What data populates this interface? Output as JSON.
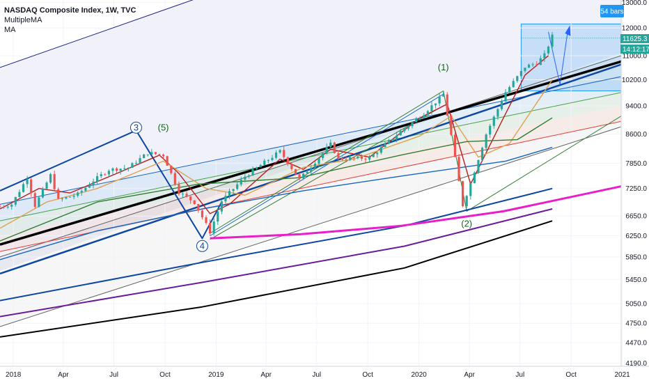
{
  "legend": {
    "title": "NASDAQ Composite Index, 1W, TVC",
    "indicator1": "MultipleMA",
    "indicator2": "MA"
  },
  "colors": {
    "up": "#26a69a",
    "down": "#ef5350",
    "text": "#131722",
    "accent": "#2196f3",
    "magenta": "#e91ec9",
    "black": "#000000",
    "navy": "#0d47a1",
    "purple": "#4a148c"
  },
  "tags": {
    "bars": "54 bars",
    "price": "11625.3",
    "countdown": "14:12:17"
  },
  "wave_labels": [
    {
      "text": "3",
      "circled": true,
      "date": "2018-08-10",
      "price": 8700
    },
    {
      "text": "(5)",
      "circled": false,
      "date": "2018-09-28",
      "price": 8700
    },
    {
      "text": "4",
      "circled": true,
      "date": "2018-12-07",
      "price": 6000
    },
    {
      "text": "(1)",
      "circled": false,
      "date": "2020-02-14",
      "price": 10500
    },
    {
      "text": "(2)",
      "circled": false,
      "date": "2020-03-27",
      "price": 6430
    }
  ],
  "chart_data": {
    "type": "line",
    "title": "NASDAQ Composite Index, 1W, TVC",
    "x_range": [
      "2017-12-08",
      "2020-12-30"
    ],
    "y_scale": "log",
    "ylim": [
      4150,
      13100
    ],
    "y_ticks": [
      13000,
      12000,
      11000,
      10200,
      9400,
      8600,
      7850,
      7250,
      6650,
      6250,
      5850,
      5450,
      5050,
      4750,
      4470,
      4190
    ],
    "x_ticks": [
      {
        "label": "2018",
        "date": "2018-01-01"
      },
      {
        "label": "Apr",
        "date": "2018-04-01"
      },
      {
        "label": "Jul",
        "date": "2018-07-01"
      },
      {
        "label": "Oct",
        "date": "2018-10-01"
      },
      {
        "label": "2019",
        "date": "2019-01-01"
      },
      {
        "label": "Apr",
        "date": "2019-04-01"
      },
      {
        "label": "Jul",
        "date": "2019-07-01"
      },
      {
        "label": "Oct",
        "date": "2019-10-01"
      },
      {
        "label": "2020",
        "date": "2020-01-01"
      },
      {
        "label": "Apr",
        "date": "2020-04-01"
      },
      {
        "label": "Jul",
        "date": "2020-07-01"
      },
      {
        "label": "Oct",
        "date": "2020-10-01"
      },
      {
        "label": "2021",
        "date": "2021-01-01"
      }
    ],
    "close_path": [
      [
        "2017-12-08",
        6850
      ],
      [
        "2017-12-29",
        6900
      ],
      [
        "2018-01-26",
        7500
      ],
      [
        "2018-02-09",
        6870
      ],
      [
        "2018-03-09",
        7560
      ],
      [
        "2018-03-23",
        6990
      ],
      [
        "2018-04-27",
        7120
      ],
      [
        "2018-05-25",
        7430
      ],
      [
        "2018-06-22",
        7690
      ],
      [
        "2018-07-27",
        7740
      ],
      [
        "2018-08-31",
        8110
      ],
      [
        "2018-09-28",
        8050
      ],
      [
        "2018-10-26",
        7170
      ],
      [
        "2018-11-23",
        6940
      ],
      [
        "2018-12-21",
        6330
      ],
      [
        "2019-01-11",
        6970
      ],
      [
        "2019-02-22",
        7530
      ],
      [
        "2019-04-26",
        8150
      ],
      [
        "2019-05-31",
        7460
      ],
      [
        "2019-07-26",
        8330
      ],
      [
        "2019-08-09",
        7960
      ],
      [
        "2019-10-04",
        7980
      ],
      [
        "2019-11-29",
        8670
      ],
      [
        "2020-01-10",
        9180
      ],
      [
        "2020-02-14",
        9730
      ],
      [
        "2020-02-28",
        8570
      ],
      [
        "2020-03-20",
        6880
      ],
      [
        "2020-04-03",
        7370
      ],
      [
        "2020-05-01",
        8600
      ],
      [
        "2020-06-05",
        9810
      ],
      [
        "2020-07-10",
        10620
      ],
      [
        "2020-07-31",
        10750
      ],
      [
        "2020-08-14",
        11020
      ],
      [
        "2020-08-28",
        11695
      ]
    ],
    "series": [
      {
        "color": "#b71c1c",
        "values": [
          [
            "2017-12-08",
            6800
          ],
          [
            "2018-02-16",
            7250
          ],
          [
            "2018-04-13",
            7150
          ],
          [
            "2018-07-06",
            7600
          ],
          [
            "2018-09-21",
            8050
          ],
          [
            "2018-10-26",
            7600
          ],
          [
            "2018-12-21",
            6700
          ],
          [
            "2019-01-25",
            6900
          ],
          [
            "2019-04-26",
            7950
          ],
          [
            "2019-06-07",
            7700
          ],
          [
            "2019-07-26",
            8200
          ],
          [
            "2019-10-04",
            8000
          ],
          [
            "2020-01-03",
            9050
          ],
          [
            "2020-02-21",
            9450
          ],
          [
            "2020-04-03",
            7350
          ],
          [
            "2020-05-29",
            8950
          ],
          [
            "2020-07-10",
            10350
          ],
          [
            "2020-08-21",
            11000
          ]
        ]
      },
      {
        "color": "#e0a050",
        "values": [
          [
            "2017-12-08",
            6400
          ],
          [
            "2018-03-02",
            6950
          ],
          [
            "2018-06-01",
            7250
          ],
          [
            "2018-09-28",
            7900
          ],
          [
            "2018-12-14",
            7250
          ],
          [
            "2019-02-22",
            7100
          ],
          [
            "2019-06-07",
            7750
          ],
          [
            "2019-09-06",
            7950
          ],
          [
            "2020-01-03",
            8550
          ],
          [
            "2020-02-28",
            9100
          ],
          [
            "2020-04-17",
            8000
          ],
          [
            "2020-06-12",
            8350
          ],
          [
            "2020-08-28",
            10200
          ]
        ]
      },
      {
        "color": "#2e7d32",
        "values": [
          [
            "2017-12-08",
            6150
          ],
          [
            "2018-06-01",
            6950
          ],
          [
            "2018-11-30",
            7350
          ],
          [
            "2019-05-31",
            7500
          ],
          [
            "2019-11-29",
            8050
          ],
          [
            "2020-03-27",
            8400
          ],
          [
            "2020-06-26",
            8450
          ],
          [
            "2020-08-28",
            9050
          ]
        ]
      },
      {
        "color": "#1565c0",
        "values": [
          [
            "2017-12-08",
            5800
          ],
          [
            "2018-06-01",
            6350
          ],
          [
            "2018-12-07",
            6800
          ],
          [
            "2019-06-07",
            7200
          ],
          [
            "2019-12-06",
            7550
          ],
          [
            "2020-06-05",
            7900
          ],
          [
            "2020-08-28",
            8250
          ]
        ]
      },
      {
        "color": "#0d47a1",
        "values": [
          [
            "2017-12-08",
            5100
          ],
          [
            "2018-12-07",
            5750
          ],
          [
            "2019-12-06",
            6450
          ],
          [
            "2020-08-28",
            7250
          ]
        ]
      },
      {
        "color": "#6a1b9a",
        "values": [
          [
            "2017-12-08",
            4850
          ],
          [
            "2018-12-07",
            5400
          ],
          [
            "2019-12-06",
            6050
          ],
          [
            "2020-08-28",
            6800
          ]
        ]
      },
      {
        "color": "#000000",
        "values": [
          [
            "2017-12-08",
            4550
          ],
          [
            "2018-12-07",
            5000
          ],
          [
            "2019-12-06",
            5650
          ],
          [
            "2020-08-28",
            6550
          ]
        ]
      }
    ]
  }
}
